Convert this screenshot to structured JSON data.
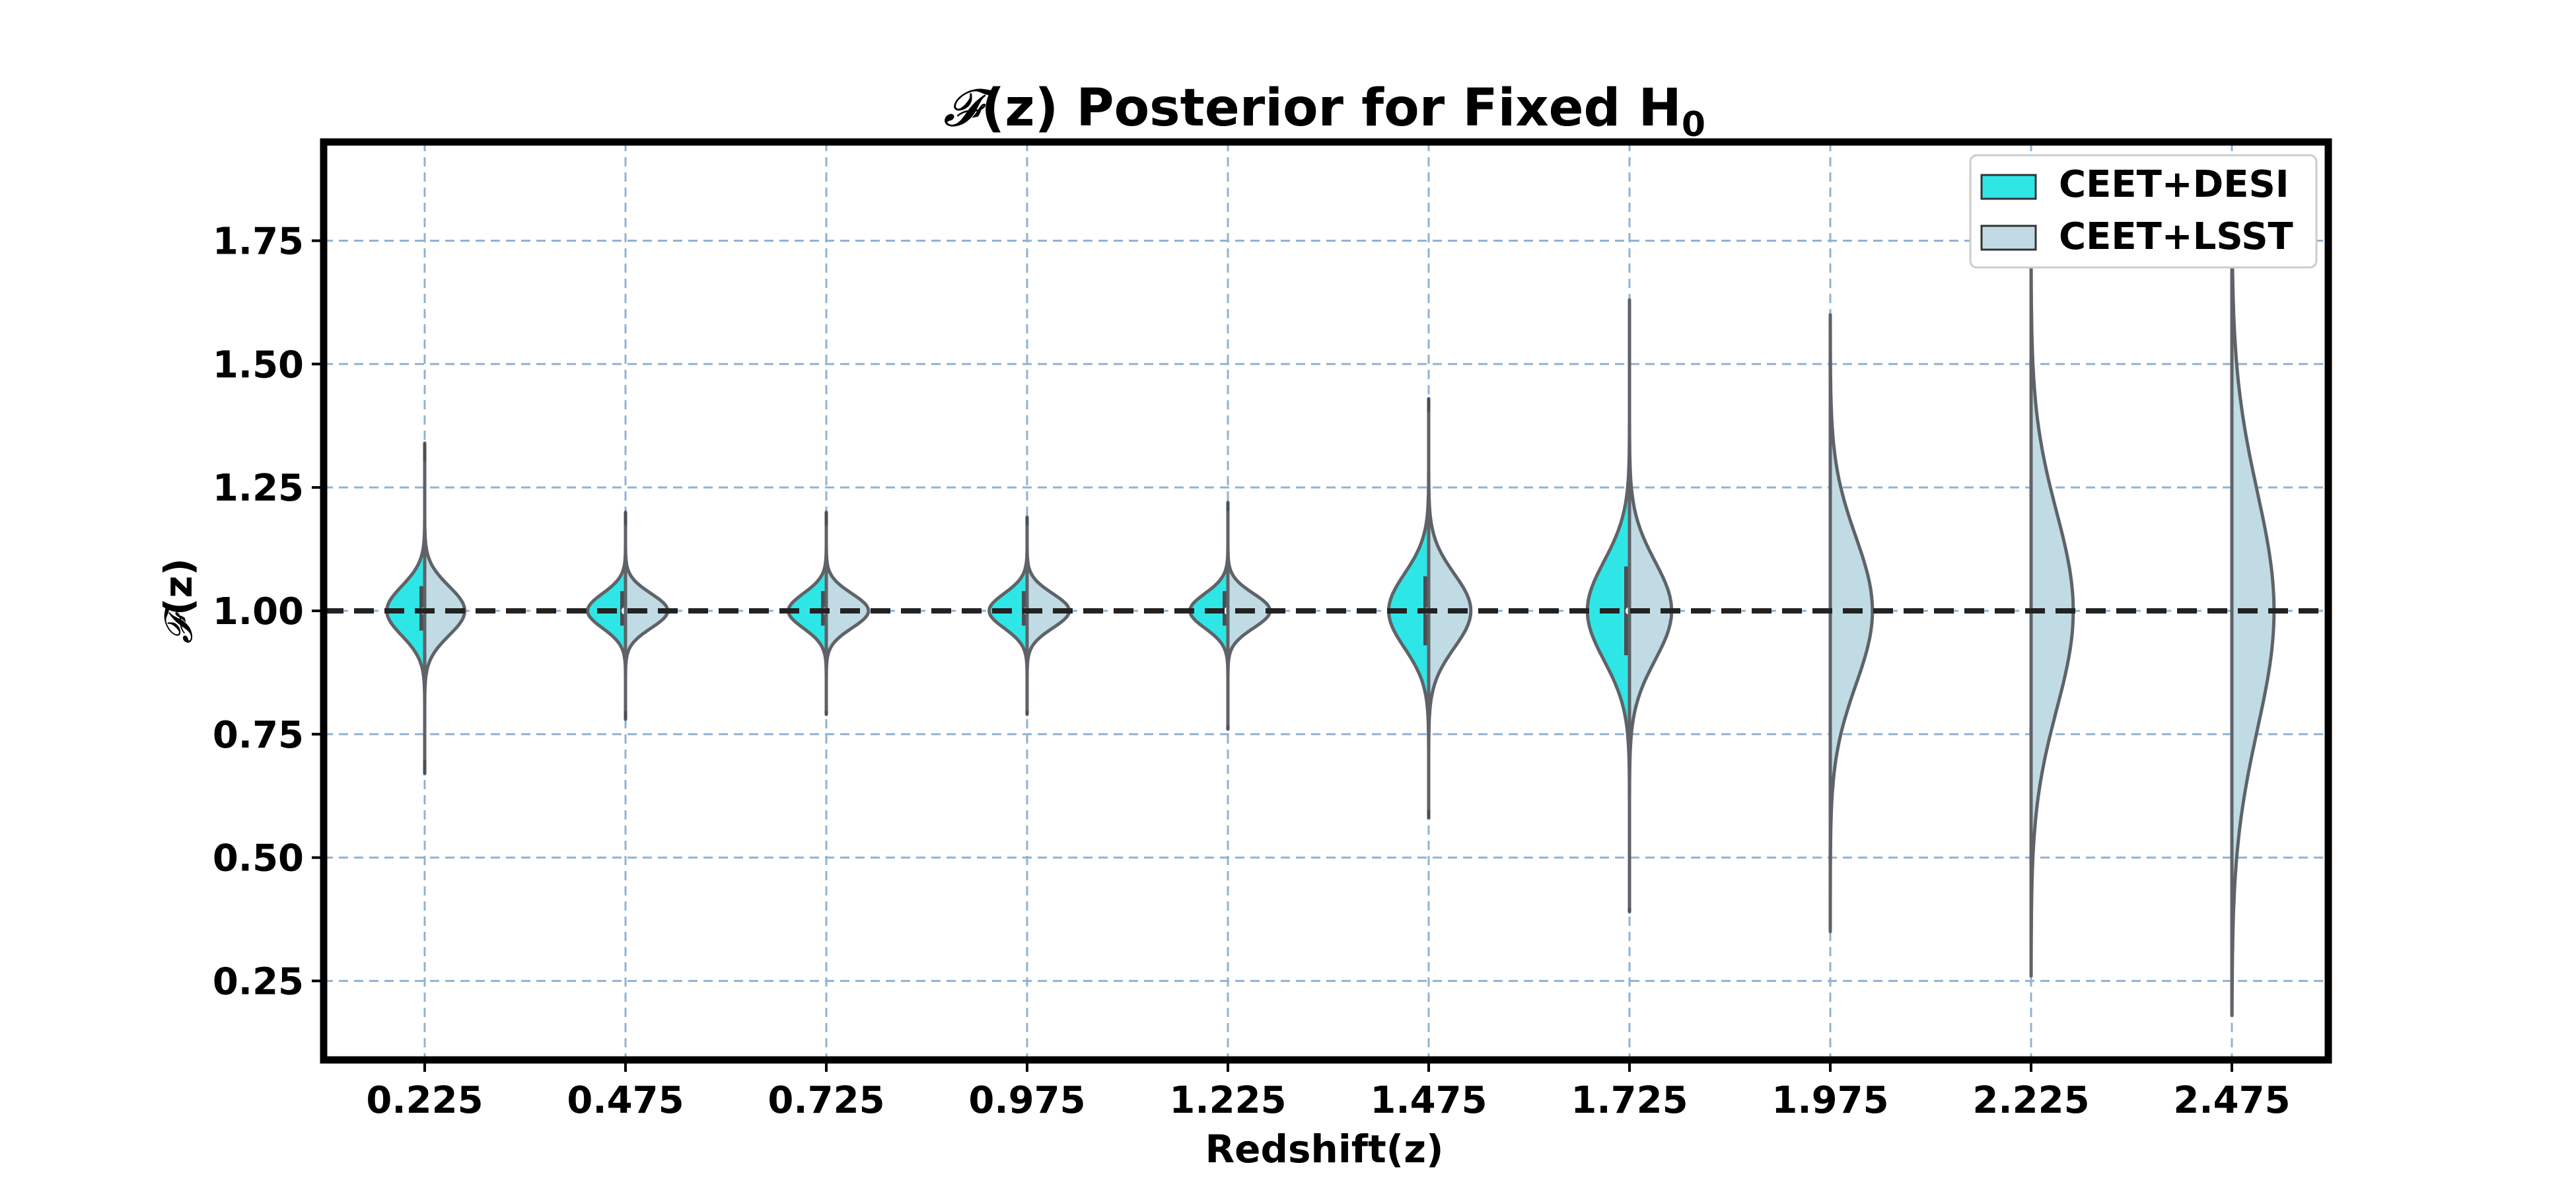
{
  "chart_data": {
    "type": "violin",
    "title": "(z) Posterior for Fixed H",
    "title_prefix_symbol": "𝓕",
    "title_subscript": "0",
    "xlabel": "Redshift(z)",
    "ylabel": "(z)",
    "ylabel_symbol": "𝓕",
    "categories": [
      "0.225",
      "0.475",
      "0.725",
      "0.975",
      "1.225",
      "1.475",
      "1.725",
      "1.975",
      "2.225",
      "2.475"
    ],
    "yticks": [
      "0.25",
      "0.50",
      "0.75",
      "1.00",
      "1.25",
      "1.50",
      "1.75"
    ],
    "ylim": [
      0.09,
      1.95
    ],
    "reference_line": 1.0,
    "grid": true,
    "legend_position": "top-right",
    "series": [
      {
        "name": "CEET+DESI",
        "color": "#2ee6e6",
        "side": "left",
        "violins": [
          {
            "category": "0.225",
            "center": 1.0,
            "width": 0.36,
            "sigma": 0.05,
            "min": 0.67,
            "max": 1.34,
            "q1": 0.96,
            "q3": 1.05
          },
          {
            "category": "0.475",
            "center": 1.0,
            "width": 0.36,
            "sigma": 0.035,
            "min": 0.78,
            "max": 1.2,
            "q1": 0.97,
            "q3": 1.04
          },
          {
            "category": "0.725",
            "center": 1.0,
            "width": 0.36,
            "sigma": 0.035,
            "min": 0.79,
            "max": 1.2,
            "q1": 0.97,
            "q3": 1.04
          },
          {
            "category": "0.975",
            "center": 1.0,
            "width": 0.36,
            "sigma": 0.035,
            "min": 0.79,
            "max": 1.19,
            "q1": 0.97,
            "q3": 1.04
          },
          {
            "category": "1.225",
            "center": 1.0,
            "width": 0.36,
            "sigma": 0.035,
            "min": 0.76,
            "max": 1.22,
            "q1": 0.97,
            "q3": 1.04
          },
          {
            "category": "1.475",
            "center": 1.0,
            "width": 0.38,
            "sigma": 0.075,
            "min": 0.58,
            "max": 1.43,
            "q1": 0.93,
            "q3": 1.07
          },
          {
            "category": "1.725",
            "center": 1.0,
            "width": 0.4,
            "sigma": 0.1,
            "min": 0.39,
            "max": 1.55,
            "q1": 0.91,
            "q3": 1.09
          }
        ]
      },
      {
        "name": "CEET+LSST",
        "color": "#c0dbe4",
        "side": "right",
        "violins": [
          {
            "category": "0.225",
            "center": 1.0,
            "width": 0.38,
            "sigma": 0.05,
            "min": 0.7,
            "max": 1.3
          },
          {
            "category": "0.475",
            "center": 1.0,
            "width": 0.4,
            "sigma": 0.035,
            "min": 0.8,
            "max": 1.17
          },
          {
            "category": "0.725",
            "center": 1.0,
            "width": 0.4,
            "sigma": 0.035,
            "min": 0.8,
            "max": 1.17
          },
          {
            "category": "0.975",
            "center": 1.0,
            "width": 0.4,
            "sigma": 0.035,
            "min": 0.8,
            "max": 1.17
          },
          {
            "category": "1.225",
            "center": 1.0,
            "width": 0.4,
            "sigma": 0.035,
            "min": 0.77,
            "max": 1.2
          },
          {
            "category": "1.475",
            "center": 1.0,
            "width": 0.4,
            "sigma": 0.075,
            "min": 0.6,
            "max": 1.4
          },
          {
            "category": "1.725",
            "center": 1.0,
            "width": 0.4,
            "sigma": 0.1,
            "min": 0.4,
            "max": 1.63
          },
          {
            "category": "1.975",
            "center": 1.0,
            "width": 0.4,
            "sigma": 0.15,
            "min": 0.35,
            "max": 1.6
          },
          {
            "category": "2.225",
            "center": 1.0,
            "width": 0.4,
            "sigma": 0.2,
            "min": 0.26,
            "max": 1.75
          },
          {
            "category": "2.475",
            "center": 1.0,
            "width": 0.4,
            "sigma": 0.24,
            "min": 0.18,
            "max": 1.76
          }
        ]
      }
    ]
  }
}
